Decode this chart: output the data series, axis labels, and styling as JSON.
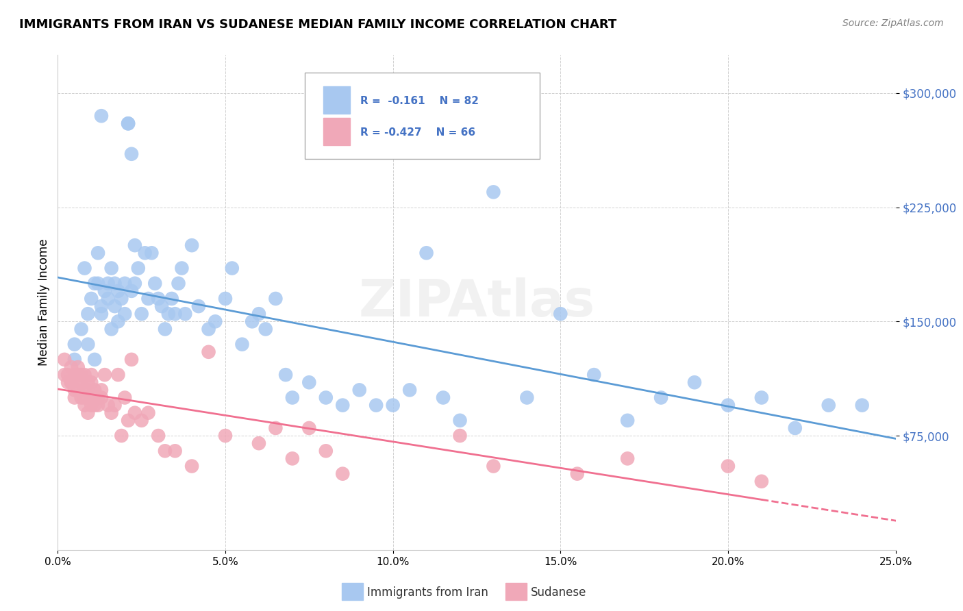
{
  "title": "IMMIGRANTS FROM IRAN VS SUDANESE MEDIAN FAMILY INCOME CORRELATION CHART",
  "source": "Source: ZipAtlas.com",
  "ylabel": "Median Family Income",
  "ytick_labels": [
    "$75,000",
    "$150,000",
    "$225,000",
    "$300,000"
  ],
  "ytick_values": [
    75000,
    150000,
    225000,
    300000
  ],
  "ylim": [
    0,
    325000
  ],
  "xlim": [
    0,
    0.25
  ],
  "watermark": "ZIPAtlas",
  "legend_iran_R": "R =  -0.161",
  "legend_iran_N": "N = 82",
  "legend_sudan_R": "R = -0.427",
  "legend_sudan_N": "N = 66",
  "legend_iran_label": "Immigrants from Iran",
  "legend_sudan_label": "Sudanese",
  "color_iran": "#a8c8f0",
  "color_sudan": "#f0a8b8",
  "color_iran_line": "#5b9bd5",
  "color_sudan_line": "#f07090",
  "color_legend_text": "#4472c4",
  "iran_scatter_x": [
    0.005,
    0.008,
    0.009,
    0.01,
    0.011,
    0.012,
    0.012,
    0.013,
    0.013,
    0.014,
    0.015,
    0.015,
    0.016,
    0.016,
    0.017,
    0.017,
    0.018,
    0.018,
    0.019,
    0.02,
    0.02,
    0.021,
    0.022,
    0.022,
    0.023,
    0.023,
    0.024,
    0.025,
    0.026,
    0.027,
    0.028,
    0.029,
    0.03,
    0.031,
    0.032,
    0.033,
    0.034,
    0.035,
    0.036,
    0.037,
    0.038,
    0.04,
    0.042,
    0.045,
    0.047,
    0.05,
    0.052,
    0.055,
    0.058,
    0.06,
    0.062,
    0.065,
    0.068,
    0.07,
    0.075,
    0.08,
    0.085,
    0.09,
    0.095,
    0.1,
    0.105,
    0.11,
    0.115,
    0.12,
    0.13,
    0.14,
    0.15,
    0.16,
    0.17,
    0.18,
    0.19,
    0.2,
    0.21,
    0.22,
    0.23,
    0.24,
    0.005,
    0.007,
    0.009,
    0.011,
    0.013,
    0.021
  ],
  "iran_scatter_y": [
    135000,
    185000,
    155000,
    165000,
    175000,
    195000,
    175000,
    160000,
    155000,
    170000,
    175000,
    165000,
    145000,
    185000,
    160000,
    175000,
    150000,
    170000,
    165000,
    155000,
    175000,
    280000,
    170000,
    260000,
    200000,
    175000,
    185000,
    155000,
    195000,
    165000,
    195000,
    175000,
    165000,
    160000,
    145000,
    155000,
    165000,
    155000,
    175000,
    185000,
    155000,
    200000,
    160000,
    145000,
    150000,
    165000,
    185000,
    135000,
    150000,
    155000,
    145000,
    165000,
    115000,
    100000,
    110000,
    100000,
    95000,
    105000,
    95000,
    95000,
    105000,
    195000,
    100000,
    85000,
    235000,
    100000,
    155000,
    115000,
    85000,
    100000,
    110000,
    95000,
    100000,
    80000,
    95000,
    95000,
    125000,
    145000,
    135000,
    125000,
    285000,
    280000
  ],
  "sudan_scatter_x": [
    0.002,
    0.003,
    0.004,
    0.004,
    0.005,
    0.005,
    0.006,
    0.006,
    0.006,
    0.007,
    0.007,
    0.007,
    0.008,
    0.008,
    0.008,
    0.009,
    0.009,
    0.01,
    0.01,
    0.01,
    0.011,
    0.011,
    0.012,
    0.012,
    0.013,
    0.013,
    0.014,
    0.015,
    0.016,
    0.017,
    0.018,
    0.019,
    0.02,
    0.021,
    0.022,
    0.023,
    0.025,
    0.027,
    0.03,
    0.032,
    0.035,
    0.04,
    0.045,
    0.05,
    0.06,
    0.065,
    0.07,
    0.075,
    0.08,
    0.085,
    0.12,
    0.13,
    0.155,
    0.17,
    0.2,
    0.21,
    0.002,
    0.003,
    0.004,
    0.005,
    0.006,
    0.007,
    0.008,
    0.009,
    0.01,
    0.011
  ],
  "sudan_scatter_y": [
    125000,
    115000,
    120000,
    110000,
    115000,
    100000,
    120000,
    115000,
    105000,
    115000,
    100000,
    110000,
    115000,
    105000,
    95000,
    110000,
    105000,
    95000,
    115000,
    110000,
    100000,
    105000,
    95000,
    100000,
    100000,
    105000,
    115000,
    95000,
    90000,
    95000,
    115000,
    75000,
    100000,
    85000,
    125000,
    90000,
    85000,
    90000,
    75000,
    65000,
    65000,
    55000,
    130000,
    75000,
    70000,
    80000,
    60000,
    80000,
    65000,
    50000,
    75000,
    55000,
    50000,
    60000,
    55000,
    45000,
    115000,
    110000,
    110000,
    105000,
    115000,
    110000,
    100000,
    90000,
    100000,
    95000
  ]
}
